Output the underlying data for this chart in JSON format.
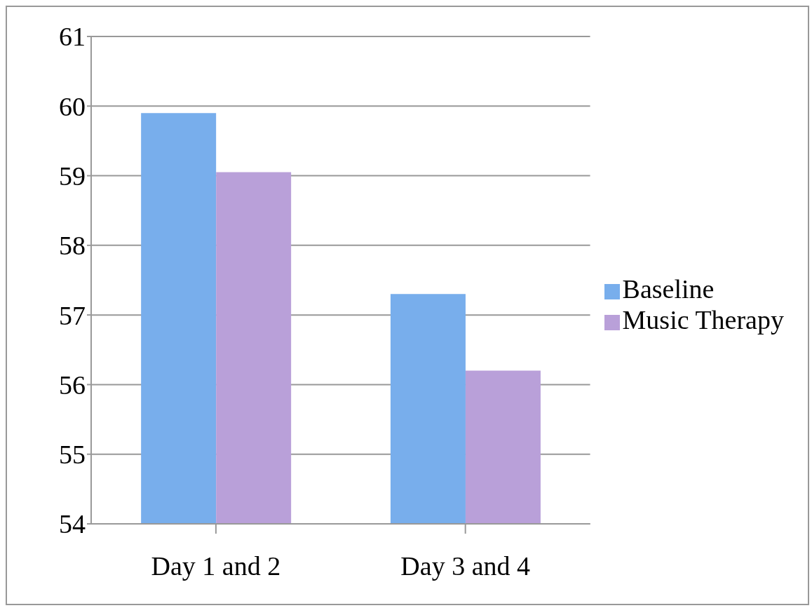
{
  "chart_data": {
    "type": "bar",
    "categories": [
      "Day 1 and 2",
      "Day 3 and 4"
    ],
    "series": [
      {
        "name": "Baseline",
        "color": "#78aeec",
        "values": [
          59.9,
          57.3
        ]
      },
      {
        "name": "Music Therapy",
        "color": "#b9a0d9",
        "values": [
          59.05,
          56.2
        ]
      }
    ],
    "ylim": [
      54,
      61
    ],
    "yticks": [
      54,
      55,
      56,
      57,
      58,
      59,
      60,
      61
    ],
    "grid": "y",
    "legend": "right"
  }
}
